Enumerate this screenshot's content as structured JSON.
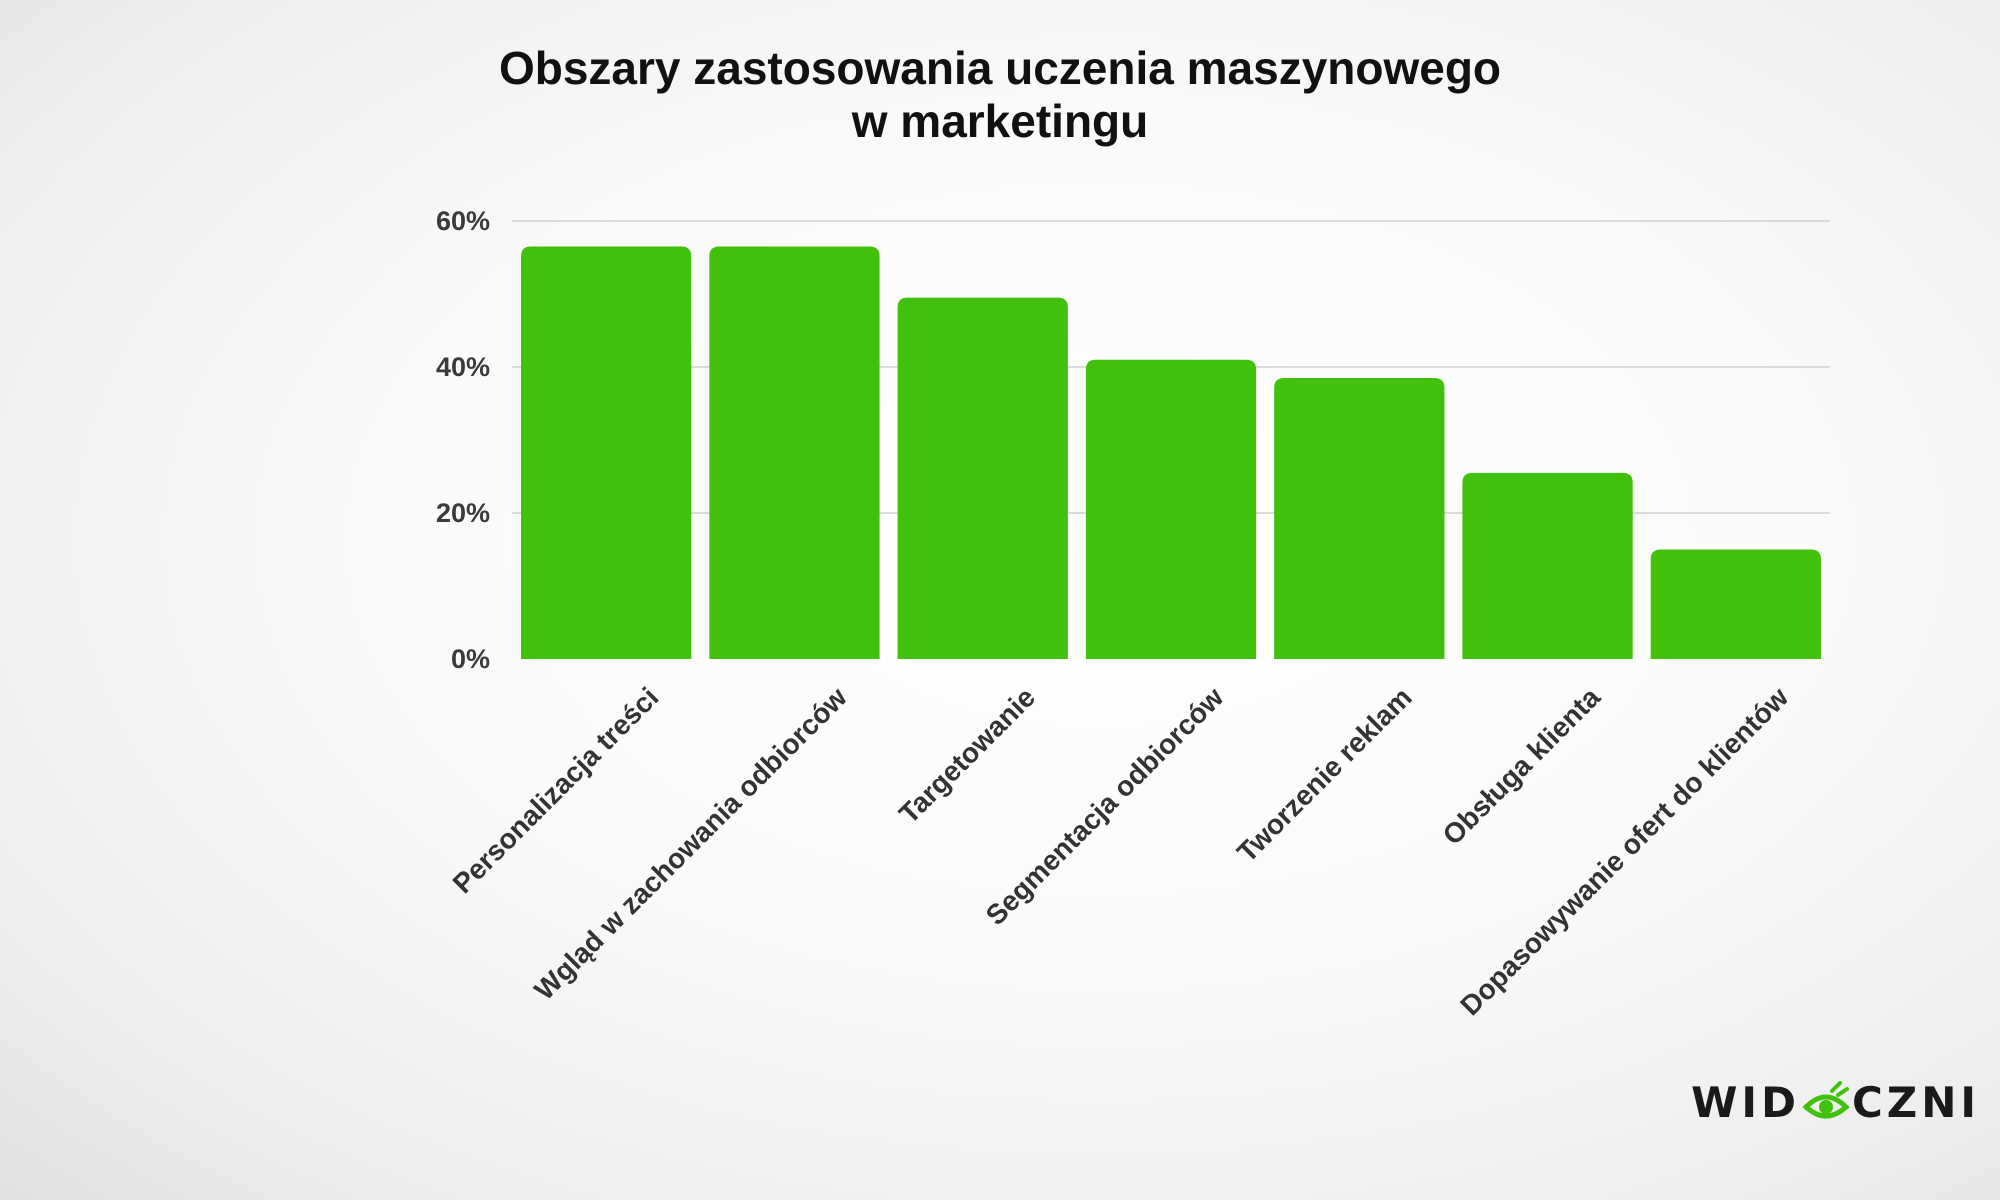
{
  "title_line1": "Obszary zastosowania uczenia maszynowego",
  "title_line2": "w marketingu",
  "logo": {
    "text_left": "WID",
    "text_right": "CZNI",
    "icon": "eye-icon"
  },
  "colors": {
    "bar": "#41c10b",
    "grid": "#cfcfcf",
    "logo_accent": "#41c10b"
  },
  "chart_data": {
    "type": "bar",
    "categories": [
      "Personalizacja treści",
      "Wgląd w zachowania odbiorców",
      "Targetowanie",
      "Segmentacja odbiorców",
      "Tworzenie reklam",
      "Obsługa klienta",
      "Dopasowywanie ofert do klientów"
    ],
    "values": [
      56.5,
      56.5,
      49.5,
      41,
      38.5,
      25.5,
      15
    ],
    "ylim": [
      0,
      60
    ],
    "yticks": [
      0,
      20,
      40,
      60
    ],
    "ytick_labels": [
      "0%",
      "20%",
      "40%",
      "60%"
    ],
    "grid": true,
    "xlabel": "",
    "ylabel": ""
  }
}
